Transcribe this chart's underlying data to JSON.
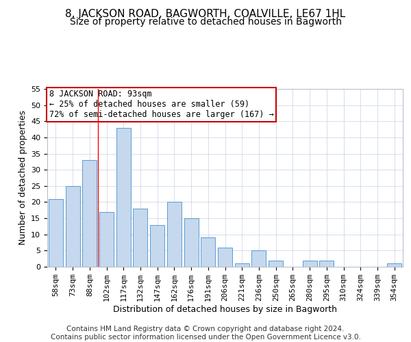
{
  "title_line1": "8, JACKSON ROAD, BAGWORTH, COALVILLE, LE67 1HL",
  "title_line2": "Size of property relative to detached houses in Bagworth",
  "xlabel": "Distribution of detached houses by size in Bagworth",
  "ylabel": "Number of detached properties",
  "categories": [
    "58sqm",
    "73sqm",
    "88sqm",
    "102sqm",
    "117sqm",
    "132sqm",
    "147sqm",
    "162sqm",
    "176sqm",
    "191sqm",
    "206sqm",
    "221sqm",
    "236sqm",
    "250sqm",
    "265sqm",
    "280sqm",
    "295sqm",
    "310sqm",
    "324sqm",
    "339sqm",
    "354sqm"
  ],
  "values": [
    21,
    25,
    33,
    17,
    43,
    18,
    13,
    20,
    15,
    9,
    6,
    1,
    5,
    2,
    0,
    2,
    2,
    0,
    0,
    0,
    1
  ],
  "bar_color": "#c5d8ed",
  "bar_edge_color": "#5b9bd5",
  "background_color": "#ffffff",
  "grid_color": "#d0d8e8",
  "annotation_line1": "8 JACKSON ROAD: 93sqm",
  "annotation_line2": "← 25% of detached houses are smaller (59)",
  "annotation_line3": "72% of semi-detached houses are larger (167) →",
  "annotation_box_color": "#ffffff",
  "annotation_box_edge_color": "#cc0000",
  "red_line_x": 2.5,
  "ylim": [
    0,
    55
  ],
  "yticks": [
    0,
    5,
    10,
    15,
    20,
    25,
    30,
    35,
    40,
    45,
    50,
    55
  ],
  "footer_text": "Contains HM Land Registry data © Crown copyright and database right 2024.\nContains public sector information licensed under the Open Government Licence v3.0.",
  "title_fontsize": 11,
  "subtitle_fontsize": 10,
  "axis_label_fontsize": 9,
  "tick_fontsize": 8,
  "annotation_fontsize": 8.5,
  "footer_fontsize": 7.5
}
